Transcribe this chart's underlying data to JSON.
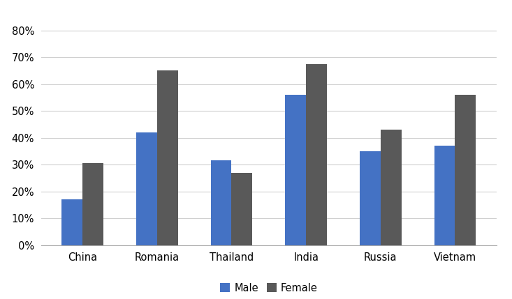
{
  "categories": [
    "China",
    "Romania",
    "Thailand",
    "India",
    "Russia",
    "Vietnam"
  ],
  "male_values": [
    0.17,
    0.42,
    0.315,
    0.56,
    0.35,
    0.37
  ],
  "female_values": [
    0.305,
    0.65,
    0.27,
    0.675,
    0.43,
    0.56
  ],
  "male_color": "#4472C4",
  "female_color": "#595959",
  "ylim": [
    0,
    0.88
  ],
  "yticks": [
    0,
    0.1,
    0.2,
    0.3,
    0.4,
    0.5,
    0.6,
    0.7,
    0.8
  ],
  "legend_labels": [
    "Male",
    "Female"
  ],
  "bar_width": 0.28,
  "background_color": "#ffffff",
  "grid_color": "#d0d0d0"
}
